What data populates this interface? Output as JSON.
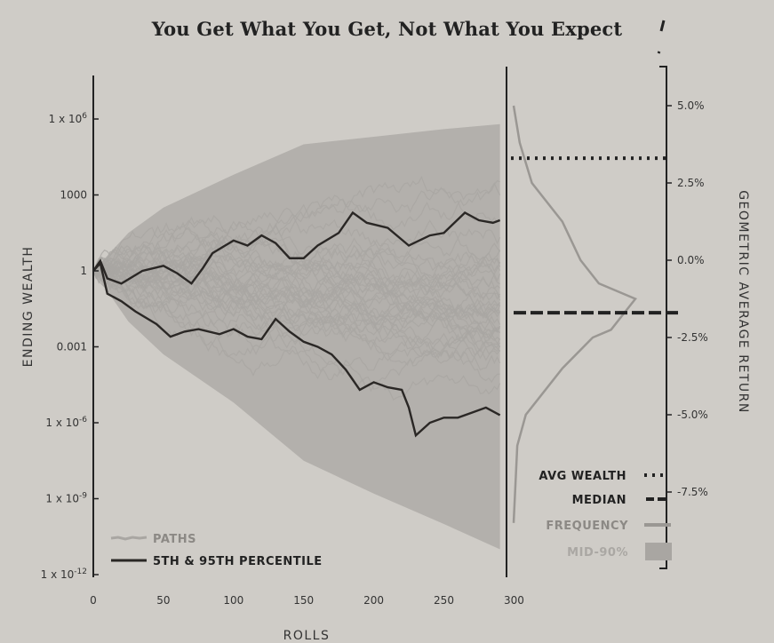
{
  "title": "You Get What You Get, Not What You Expect",
  "chart_data": {
    "type": "line",
    "title": "You Get What You Get, Not What You Expect",
    "xlabel": "ROLLS",
    "ylabel": "ENDING WEALTH",
    "y2label": "GEOMETRIC AVERAGE RETURN",
    "xlim": [
      0,
      300
    ],
    "ylim_log10": [
      -12,
      8
    ],
    "y2lim_pct": [
      -8.5,
      5.5
    ],
    "x_ticks": [
      "0",
      "50",
      "100",
      "150",
      "200",
      "250",
      "300"
    ],
    "x_tick_values": [
      0,
      50,
      100,
      150,
      200,
      250,
      300
    ],
    "y_ticks": [
      "1 x 10^6",
      "1000",
      "1",
      "0.001",
      "1 x 10^-6",
      "1 x 10^-9",
      "1 x 10^-12"
    ],
    "y_tick_log10": [
      6,
      3,
      0,
      -3,
      -6,
      -9,
      -12
    ],
    "y2_ticks": [
      "5.0%",
      "2.5%",
      "0.0%",
      "-2.5%",
      "-5.0%",
      "-7.5%"
    ],
    "y2_tick_values": [
      5.0,
      2.5,
      0.0,
      -2.5,
      -5.0,
      -7.5
    ],
    "series": [
      {
        "name": "95th percentile",
        "x": [
          0,
          5,
          10,
          20,
          35,
          50,
          60,
          70,
          78,
          85,
          100,
          110,
          120,
          130,
          140,
          150,
          160,
          175,
          185,
          195,
          210,
          225,
          240,
          250,
          265,
          275,
          285,
          290
        ],
        "log10_wealth": [
          0,
          0.4,
          -0.3,
          -0.5,
          0,
          0.2,
          -0.1,
          -0.5,
          0.1,
          0.7,
          1.2,
          1.0,
          1.4,
          1.1,
          0.5,
          0.5,
          1.0,
          1.5,
          2.3,
          1.9,
          1.7,
          1.0,
          1.4,
          1.5,
          2.3,
          2.0,
          1.9,
          2.0
        ]
      },
      {
        "name": "5th percentile",
        "x": [
          0,
          5,
          10,
          20,
          30,
          45,
          55,
          65,
          75,
          90,
          100,
          110,
          120,
          130,
          140,
          150,
          160,
          170,
          180,
          190,
          200,
          210,
          220,
          225,
          230,
          240,
          250,
          260,
          270,
          280,
          290
        ],
        "log10_wealth": [
          0,
          0.3,
          -0.9,
          -1.2,
          -1.6,
          -2.1,
          -2.6,
          -2.4,
          -2.3,
          -2.5,
          -2.3,
          -2.6,
          -2.7,
          -1.9,
          -2.4,
          -2.8,
          -3.0,
          -3.3,
          -3.9,
          -4.7,
          -4.4,
          -4.6,
          -4.7,
          -5.4,
          -6.5,
          -6.0,
          -5.8,
          -5.8,
          -5.6,
          -5.4,
          -5.7
        ]
      }
    ],
    "mid_90_band": {
      "x": [
        0,
        25,
        50,
        100,
        150,
        200,
        250,
        290
      ],
      "upper_log10": [
        0,
        1.5,
        2.5,
        3.8,
        5.0,
        5.3,
        5.6,
        5.8
      ],
      "lower_log10": [
        0,
        -2,
        -3.3,
        -5.2,
        -7.5,
        -8.8,
        -10.0,
        -11.0
      ]
    },
    "avg_wealth_return_pct": 3.3,
    "median_return_pct": -1.7,
    "frequency": {
      "return_pct": [
        5.0,
        3.8,
        2.5,
        1.25,
        0.0,
        -0.75,
        -1.25,
        -1.75,
        -2.25,
        -2.5,
        -3.5,
        -5.0,
        -6.0,
        -8.5
      ],
      "relative_freq": [
        0,
        0.05,
        0.15,
        0.4,
        0.55,
        0.7,
        1.0,
        0.9,
        0.8,
        0.65,
        0.4,
        0.1,
        0.03,
        0
      ]
    },
    "legend": {
      "left": [
        {
          "label": "PATHS",
          "style": "light grey line"
        },
        {
          "label": "5TH & 95TH PERCENTILE",
          "style": "black line"
        }
      ],
      "right": [
        {
          "label": "AVG WEALTH",
          "style": "dotted"
        },
        {
          "label": "MEDIAN",
          "style": "dashed"
        },
        {
          "label": "FREQUENCY",
          "style": "grey line"
        },
        {
          "label": "MID-90%",
          "style": "grey box"
        }
      ],
      "placement": "bottom-left and bottom-right"
    },
    "colors": {
      "paths": "#a9a6a2",
      "band": "#b3b0ac",
      "percentile": "#2a2725",
      "frequency": "#9a9793",
      "axis": "#222222"
    }
  }
}
